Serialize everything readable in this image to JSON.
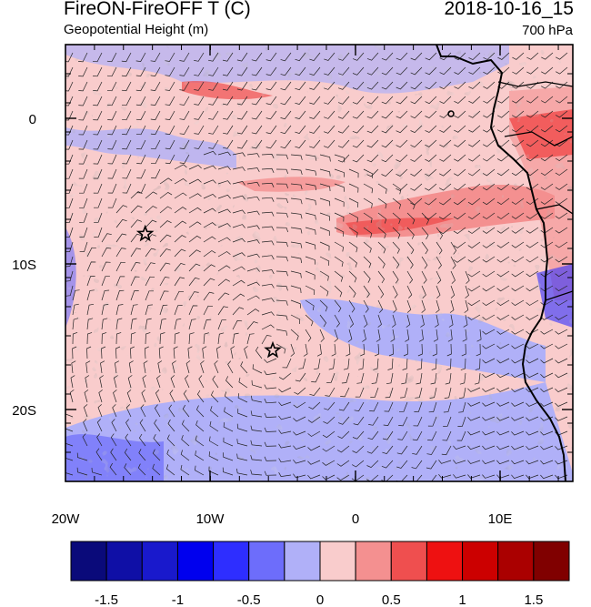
{
  "header": {
    "title": "FireON-FireOFF T (C)",
    "subtitle": "Geopotential Height (m)",
    "datetime": "2018-10-16_15",
    "level": "700 hPa"
  },
  "map": {
    "lon_range": [
      -20,
      15
    ],
    "lat_range": [
      -25,
      5
    ],
    "x_tick_labels": [
      "20W",
      "10W",
      "0",
      "10E"
    ],
    "y_tick_labels": [
      "0",
      "10S",
      "20S"
    ],
    "markers": [
      {
        "name": "star-marker",
        "lon": -14.5,
        "lat": -8
      },
      {
        "name": "star-marker",
        "lon": -5.7,
        "lat": -16
      }
    ],
    "overlays": [
      "temperature-difference-shading",
      "wind-barbs",
      "coastlines"
    ]
  },
  "colorbar": {
    "labels": [
      "-1.5",
      "-1",
      "-0.5",
      "0",
      "0.5",
      "1",
      "1.5"
    ],
    "colors": [
      "#0a0a7a",
      "#0f0fa6",
      "#1919cc",
      "#0000ee",
      "#2e2eff",
      "#6d6dfb",
      "#b0b0f8",
      "#f9cccc",
      "#f49090",
      "#ef4f4f",
      "#ee1111",
      "#cc0000",
      "#aa0000",
      "#800000"
    ]
  }
}
